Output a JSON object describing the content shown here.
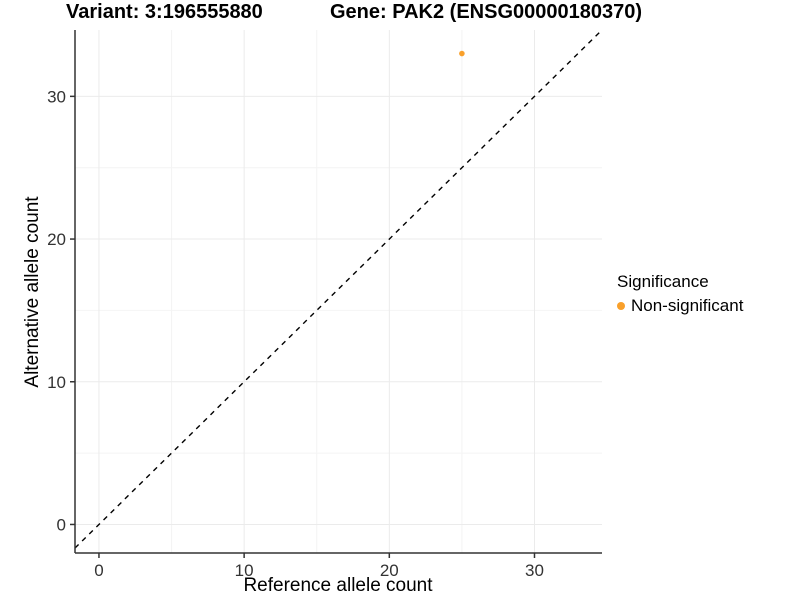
{
  "chart_data": {
    "type": "scatter",
    "title_left": "Variant: 3:196555880",
    "title_right": "Gene: PAK2 (ENSG00000180370)",
    "xlabel": "Reference allele count",
    "ylabel": "Alternative allele count",
    "xlim": [
      -1.65,
      34.65
    ],
    "ylim": [
      -2.0,
      34.65
    ],
    "x_major_ticks": [
      0,
      10,
      20,
      30
    ],
    "x_minor_ticks": [
      5,
      15,
      25
    ],
    "y_major_ticks": [
      0,
      10,
      20,
      30
    ],
    "y_minor_ticks": [
      5,
      15,
      25
    ],
    "grid": "major and minor gridlines, white background",
    "identity_line": {
      "type": "abline",
      "slope": 1,
      "intercept": 0,
      "style": "dashed",
      "color": "#000000"
    },
    "series": [
      {
        "name": "Non-significant",
        "color": "#F9A02B",
        "points": [
          [
            25,
            33
          ]
        ]
      }
    ],
    "legend": {
      "title": "Significance",
      "position": "right",
      "items": [
        {
          "label": "Non-significant",
          "color": "#F9A02B"
        }
      ]
    },
    "colors": {
      "grid_major": "#EBEBEB",
      "grid_minor": "#F4F4F4",
      "axis": "#333333",
      "tick_label": "#333333",
      "point": "#F9A02B"
    }
  }
}
